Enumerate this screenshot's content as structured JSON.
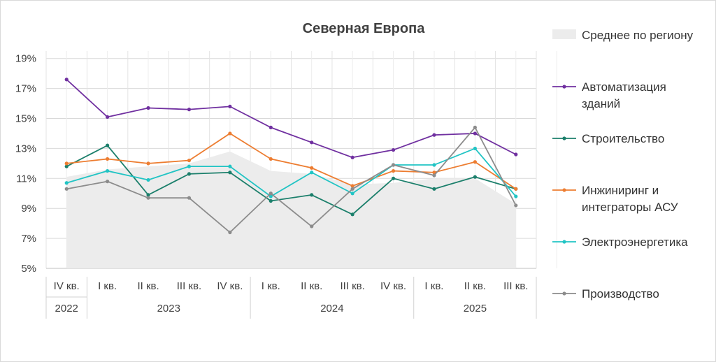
{
  "chart_data": {
    "type": "line",
    "title": "Северная Европа",
    "categories": [
      "IV кв.",
      "I кв.",
      "II кв.",
      "III кв.",
      "IV кв.",
      "I кв.",
      "II кв.",
      "III кв.",
      "IV кв.",
      "I кв.",
      "II кв.",
      "III кв."
    ],
    "years": [
      {
        "label": "2022",
        "span": 1
      },
      {
        "label": "2023",
        "span": 4
      },
      {
        "label": "2024",
        "span": 4
      },
      {
        "label": "2025",
        "span": 3
      }
    ],
    "y_ticks": [
      "5%",
      "7%",
      "9%",
      "11%",
      "13%",
      "15%",
      "17%",
      "19%"
    ],
    "ylim": [
      5,
      19.5
    ],
    "grid": true,
    "legend_position": "right",
    "area": {
      "name": "Среднее по региону",
      "color": "#ececec",
      "values": [
        11.1,
        11.6,
        11.8,
        12.0,
        12.8,
        11.5,
        11.3,
        10.6,
        10.7,
        11.0,
        11.0,
        9.3
      ]
    },
    "series": [
      {
        "name": "Автоматизация зданий",
        "color": "#7030a0",
        "values": [
          17.6,
          15.1,
          15.7,
          15.6,
          15.8,
          14.4,
          13.4,
          12.4,
          12.9,
          13.9,
          14.0,
          12.6
        ]
      },
      {
        "name": "Строительство",
        "color": "#1b7f6b",
        "values": [
          11.8,
          13.2,
          9.9,
          11.3,
          11.4,
          9.5,
          9.9,
          8.6,
          11.0,
          10.3,
          11.1,
          10.3
        ]
      },
      {
        "name": "Инжиниринг и интеграторы АСУ",
        "color": "#ed7d31",
        "values": [
          12.0,
          12.3,
          12.0,
          12.2,
          14.0,
          12.3,
          11.7,
          10.5,
          11.5,
          11.4,
          12.1,
          10.3
        ]
      },
      {
        "name": "Электроэнергетика",
        "color": "#21c4c4",
        "values": [
          10.7,
          11.5,
          10.9,
          11.8,
          11.8,
          9.8,
          11.4,
          10.0,
          11.9,
          11.9,
          13.0,
          9.8
        ]
      },
      {
        "name": "Производство",
        "color": "#8c8c8c",
        "values": [
          10.3,
          10.8,
          9.7,
          9.7,
          7.4,
          10.0,
          7.8,
          10.3,
          11.9,
          11.2,
          14.4,
          9.2
        ]
      }
    ],
    "legend": [
      {
        "lines": [
          "Среднее по региону"
        ]
      },
      {
        "lines": [
          "Автоматизация",
          "зданий"
        ]
      },
      {
        "lines": [
          "Строительство"
        ]
      },
      {
        "lines": [
          "Инжиниринг и",
          "интеграторы АСУ"
        ]
      },
      {
        "lines": [
          "Электроэнергетика"
        ]
      },
      {
        "lines": [
          "Производство"
        ]
      }
    ]
  }
}
